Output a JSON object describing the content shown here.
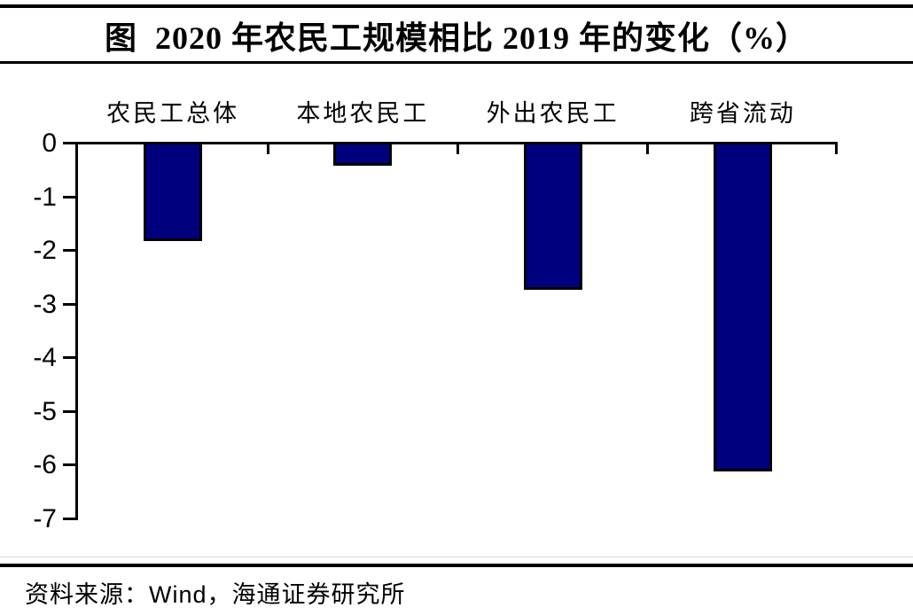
{
  "page": {
    "title": "图  2020 年农民工规模相比 2019 年的变化（%）",
    "source_note": "资料来源：Wind，海通证券研究所"
  },
  "chart_data": {
    "type": "bar",
    "title": "图 2020 年农民工规模相比 2019 年的变化（%）",
    "categories": [
      "农民工总体",
      "本地农民工",
      "外出农民工",
      "跨省流动"
    ],
    "values": [
      -1.8,
      -0.4,
      -2.7,
      -6.1
    ],
    "unit": "%",
    "xlabel": "",
    "ylabel": "",
    "ylim": [
      -7,
      0
    ],
    "yticks": [
      0,
      -1,
      -2,
      -3,
      -4,
      -5,
      -6,
      -7
    ],
    "baseline": 0,
    "grid": false,
    "legend": false,
    "bar_color": "#00007E",
    "bar_border_color": "#000000",
    "axis_color": "#000000"
  }
}
